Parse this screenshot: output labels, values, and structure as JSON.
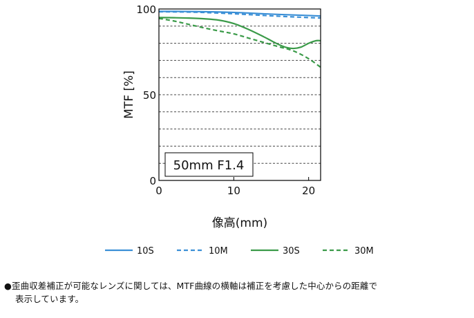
{
  "chart_data": {
    "type": "line",
    "xlabel": "像高(mm)",
    "ylabel": "MTF [%]",
    "xlim": [
      0,
      21.6
    ],
    "ylim": [
      0,
      100
    ],
    "xticks": [
      0,
      10,
      20
    ],
    "yticks": [
      0,
      50,
      100
    ],
    "grid": "horizontal dashed every 10%",
    "legend_position": "bottom",
    "annotation": "50mm F1.4",
    "series": [
      {
        "name": "10S",
        "color": "#3a8fd6",
        "dash": false,
        "x": [
          0,
          5,
          10,
          15,
          20,
          21.6
        ],
        "y": [
          98.6,
          98.5,
          98,
          97,
          96.2,
          95.9
        ]
      },
      {
        "name": "10M",
        "color": "#3a8fd6",
        "dash": true,
        "x": [
          0,
          5,
          10,
          15,
          20,
          21.6
        ],
        "y": [
          98.4,
          98.1,
          97.2,
          96,
          95,
          94.8
        ]
      },
      {
        "name": "30S",
        "color": "#3a9a48",
        "dash": false,
        "x": [
          0,
          2,
          4,
          6,
          8,
          10,
          12,
          14,
          15,
          16,
          17,
          18,
          19,
          20,
          21,
          21.6
        ],
        "y": [
          95,
          94.9,
          94.7,
          94.3,
          93.5,
          91.5,
          88,
          83.8,
          81.5,
          79.3,
          77.6,
          77,
          77.8,
          80,
          81.5,
          81.5
        ]
      },
      {
        "name": "30M",
        "color": "#3a9a48",
        "dash": true,
        "x": [
          0,
          2,
          4,
          6,
          8,
          10,
          12,
          14,
          16,
          18,
          20,
          21.6
        ],
        "y": [
          94.5,
          93,
          91,
          89,
          87.2,
          85.5,
          83,
          80.5,
          78,
          75.5,
          71,
          66
        ]
      }
    ]
  },
  "footnote": {
    "line1": "●歪曲収差補正が可能なレンズに関しては、MTF曲線の横軸は補正を考慮した中心からの距離で",
    "line2": "表示しています。"
  }
}
